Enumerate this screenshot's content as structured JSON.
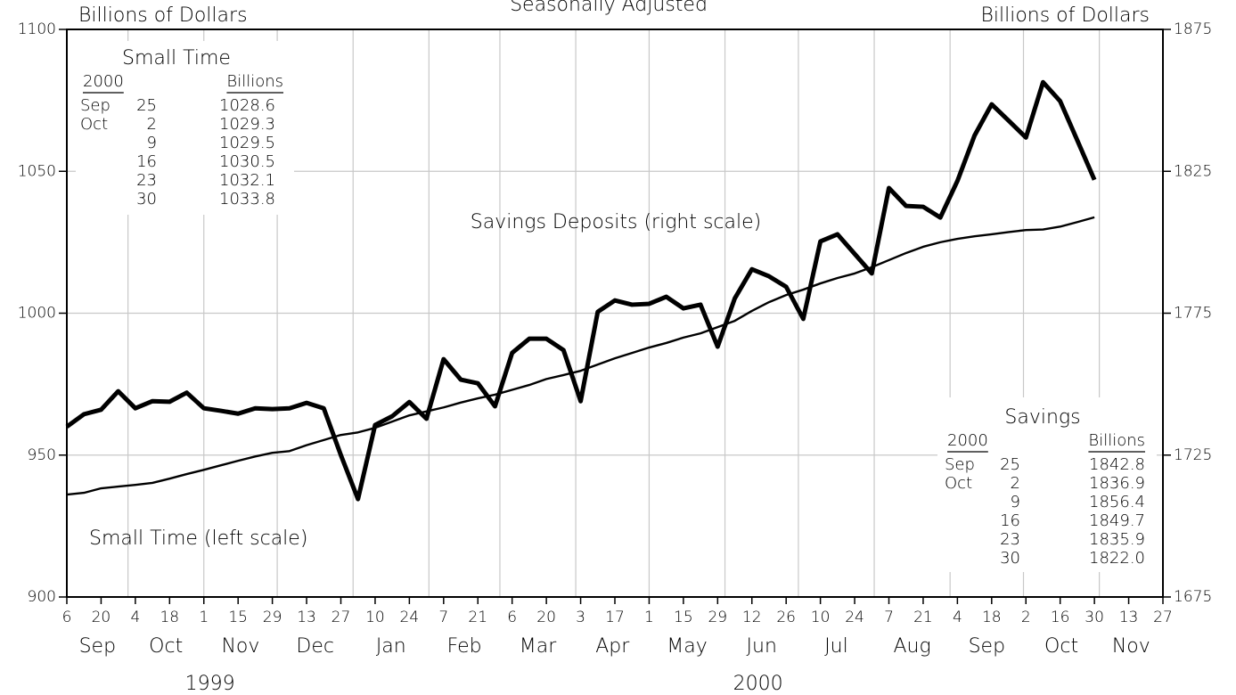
{
  "chart_data": {
    "type": "line",
    "title": "Seasonally Adjusted",
    "y_label": "Billions of Dollars",
    "y2_label": "Billions of Dollars",
    "x": [
      "1999-09-06",
      "1999-09-13",
      "1999-09-20",
      "1999-09-27",
      "1999-10-04",
      "1999-10-11",
      "1999-10-18",
      "1999-10-25",
      "1999-11-01",
      "1999-11-08",
      "1999-11-15",
      "1999-11-22",
      "1999-11-29",
      "1999-12-06",
      "1999-12-13",
      "1999-12-20",
      "1999-12-27",
      "2000-01-03",
      "2000-01-10",
      "2000-01-17",
      "2000-01-24",
      "2000-01-31",
      "2000-02-07",
      "2000-02-14",
      "2000-02-21",
      "2000-02-28",
      "2000-03-06",
      "2000-03-13",
      "2000-03-20",
      "2000-03-27",
      "2000-04-03",
      "2000-04-10",
      "2000-04-17",
      "2000-04-24",
      "2000-05-01",
      "2000-05-08",
      "2000-05-15",
      "2000-05-22",
      "2000-05-29",
      "2000-06-05",
      "2000-06-12",
      "2000-06-19",
      "2000-06-26",
      "2000-07-03",
      "2000-07-10",
      "2000-07-17",
      "2000-07-24",
      "2000-07-31",
      "2000-08-07",
      "2000-08-14",
      "2000-08-21",
      "2000-08-28",
      "2000-09-04",
      "2000-09-11",
      "2000-09-18",
      "2000-09-25",
      "2000-10-02",
      "2000-10-09",
      "2000-10-16",
      "2000-10-23",
      "2000-10-30"
    ],
    "series": [
      {
        "name": "Small Time (left scale)",
        "color": "#000000",
        "axis": "y",
        "values": [
          936.1,
          936.7,
          938.3,
          938.9,
          939.5,
          940.2,
          941.7,
          943.3,
          944.8,
          946.4,
          948.0,
          949.5,
          950.8,
          951.4,
          953.5,
          955.3,
          957.1,
          958.0,
          959.6,
          961.8,
          964.0,
          965.4,
          966.8,
          968.5,
          970.0,
          971.3,
          973.0,
          974.7,
          976.8,
          978.2,
          979.7,
          981.9,
          984.1,
          986.0,
          987.9,
          989.5,
          991.4,
          992.9,
          995.1,
          997.3,
          1000.8,
          1003.9,
          1006.4,
          1008.3,
          1010.5,
          1012.4,
          1014.0,
          1016.2,
          1018.7,
          1021.2,
          1023.4,
          1025.0,
          1026.2,
          1027.1,
          1027.8,
          1028.6,
          1029.3,
          1029.5,
          1030.5,
          1032.1,
          1033.8
        ]
      },
      {
        "name": "Savings Deposits (right scale)",
        "color": "#000000",
        "axis": "y2",
        "values": [
          1735.0,
          1739.4,
          1741.0,
          1747.5,
          1741.5,
          1744.0,
          1743.8,
          1747.0,
          1741.5,
          1740.6,
          1739.6,
          1741.5,
          1741.2,
          1741.5,
          1743.4,
          1741.5,
          1725.0,
          1709.5,
          1735.6,
          1738.7,
          1743.7,
          1737.8,
          1758.8,
          1751.6,
          1750.3,
          1742.2,
          1761.0,
          1766.0,
          1766.0,
          1762.0,
          1744.0,
          1775.5,
          1779.5,
          1778.0,
          1778.3,
          1780.8,
          1776.7,
          1778.0,
          1763.2,
          1780.2,
          1790.5,
          1788.0,
          1784.3,
          1773.0,
          1800.3,
          1802.8,
          1795.9,
          1789.0,
          1819.1,
          1812.8,
          1812.5,
          1808.7,
          1821.6,
          1837.6,
          1848.6,
          1842.8,
          1836.9,
          1856.4,
          1849.7,
          1835.9,
          1822.0
        ]
      }
    ],
    "xlim": [
      "1999-09-06",
      "2000-11-27"
    ],
    "xticks": [
      {
        "value": "1999-09-06",
        "label": "6"
      },
      {
        "value": "1999-09-20",
        "label": "20"
      },
      {
        "value": "1999-10-04",
        "label": "4"
      },
      {
        "value": "1999-10-18",
        "label": "18"
      },
      {
        "value": "1999-11-01",
        "label": "1"
      },
      {
        "value": "1999-11-15",
        "label": "15"
      },
      {
        "value": "1999-11-29",
        "label": "29"
      },
      {
        "value": "1999-12-13",
        "label": "13"
      },
      {
        "value": "1999-12-27",
        "label": "27"
      },
      {
        "value": "2000-01-10",
        "label": "10"
      },
      {
        "value": "2000-01-24",
        "label": "24"
      },
      {
        "value": "2000-02-07",
        "label": "7"
      },
      {
        "value": "2000-02-21",
        "label": "21"
      },
      {
        "value": "2000-03-06",
        "label": "6"
      },
      {
        "value": "2000-03-20",
        "label": "20"
      },
      {
        "value": "2000-04-03",
        "label": "3"
      },
      {
        "value": "2000-04-17",
        "label": "17"
      },
      {
        "value": "2000-05-01",
        "label": "1"
      },
      {
        "value": "2000-05-15",
        "label": "15"
      },
      {
        "value": "2000-05-29",
        "label": "29"
      },
      {
        "value": "2000-06-12",
        "label": "12"
      },
      {
        "value": "2000-06-26",
        "label": "26"
      },
      {
        "value": "2000-07-10",
        "label": "10"
      },
      {
        "value": "2000-07-24",
        "label": "24"
      },
      {
        "value": "2000-08-07",
        "label": "7"
      },
      {
        "value": "2000-08-21",
        "label": "21"
      },
      {
        "value": "2000-09-04",
        "label": "4"
      },
      {
        "value": "2000-09-18",
        "label": "18"
      },
      {
        "value": "2000-10-02",
        "label": "2"
      },
      {
        "value": "2000-10-16",
        "label": "16"
      },
      {
        "value": "2000-10-30",
        "label": "30"
      },
      {
        "value": "2000-11-13",
        "label": "13"
      },
      {
        "value": "2000-11-27",
        "label": "27"
      }
    ],
    "months": [
      {
        "value": "1999-09",
        "label": "Sep"
      },
      {
        "value": "1999-10",
        "label": "Oct"
      },
      {
        "value": "1999-11",
        "label": "Nov"
      },
      {
        "value": "1999-12",
        "label": "Dec"
      },
      {
        "value": "2000-01",
        "label": "Jan"
      },
      {
        "value": "2000-02",
        "label": "Feb"
      },
      {
        "value": "2000-03",
        "label": "Mar"
      },
      {
        "value": "2000-04",
        "label": "Apr"
      },
      {
        "value": "2000-05",
        "label": "May"
      },
      {
        "value": "2000-06",
        "label": "Jun"
      },
      {
        "value": "2000-07",
        "label": "Jul"
      },
      {
        "value": "2000-08",
        "label": "Aug"
      },
      {
        "value": "2000-09",
        "label": "Sep"
      },
      {
        "value": "2000-10",
        "label": "Oct"
      },
      {
        "value": "2000-11",
        "label": "Nov"
      }
    ],
    "years": [
      "1999",
      "2000"
    ],
    "ylim": [
      900,
      1100
    ],
    "yticks": [
      900,
      950,
      1000,
      1050,
      1100
    ],
    "y2lim": [
      1675,
      1875
    ],
    "y2ticks": [
      1675,
      1725,
      1775,
      1825,
      1875
    ],
    "grid": true,
    "tables": [
      {
        "title": "Small Time",
        "header": [
          "2000",
          "Billions"
        ],
        "rows": [
          {
            "month": "Sep",
            "day": "25",
            "value": "1028.6"
          },
          {
            "month": "Oct",
            "day": "2",
            "value": "1029.3"
          },
          {
            "day": "9",
            "value": "1029.5"
          },
          {
            "day": "16",
            "value": "1030.5"
          },
          {
            "day": "23",
            "value": "1032.1"
          },
          {
            "day": "30",
            "value": "1033.8"
          }
        ]
      },
      {
        "title": "Savings",
        "header": [
          "2000",
          "Billions"
        ],
        "rows": [
          {
            "month": "Sep",
            "day": "25",
            "value": "1842.8"
          },
          {
            "month": "Oct",
            "day": "2",
            "value": "1836.9"
          },
          {
            "day": "9",
            "value": "1856.4"
          },
          {
            "day": "16",
            "value": "1849.7"
          },
          {
            "day": "23",
            "value": "1835.9"
          },
          {
            "day": "30",
            "value": "1822.0"
          }
        ]
      }
    ]
  }
}
